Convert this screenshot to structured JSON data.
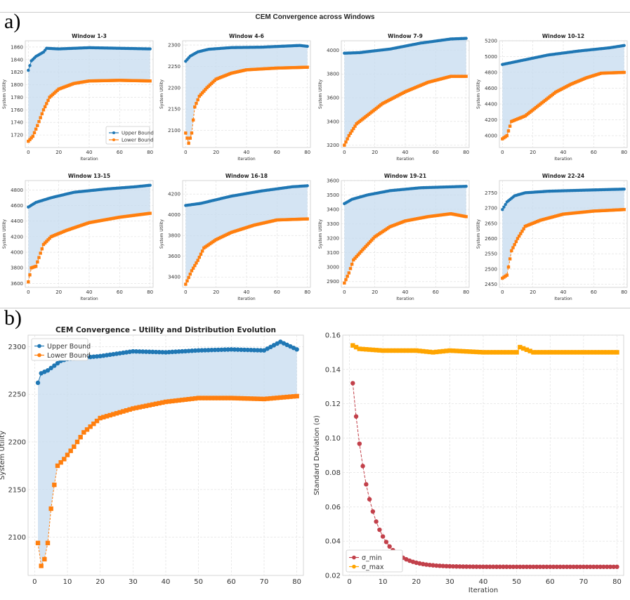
{
  "panel_labels": {
    "a": "a)",
    "b": "b)"
  },
  "suptitle": "CEM Convergence across Windows",
  "colors": {
    "upper": "#1f77b4",
    "lower": "#ff7f0e",
    "fill": "#c6dbef",
    "sigma_min": "#c2404a",
    "sigma_max": "#ffa500",
    "grid": "#dddddd"
  },
  "chart_data": [
    {
      "type": "line",
      "title": "Window 1-3",
      "xlabel": "Iteration",
      "ylabel": "System Utility",
      "xlim": [
        -2,
        82
      ],
      "ylim": [
        1700,
        1870
      ],
      "xticks": [
        0,
        20,
        40,
        60,
        80
      ],
      "yticks": [
        1720,
        1740,
        1760,
        1780,
        1800,
        1820,
        1840,
        1860
      ],
      "series": [
        {
          "name": "Upper Bound",
          "anchors": [
            [
              0,
              1823
            ],
            [
              2,
              1838
            ],
            [
              5,
              1845
            ],
            [
              10,
              1852
            ],
            [
              12,
              1858
            ],
            [
              20,
              1857
            ],
            [
              40,
              1859
            ],
            [
              60,
              1858
            ],
            [
              80,
              1857
            ]
          ]
        },
        {
          "name": "Lower Bound",
          "anchors": [
            [
              0,
              1710
            ],
            [
              3,
              1718
            ],
            [
              6,
              1735
            ],
            [
              10,
              1760
            ],
            [
              14,
              1780
            ],
            [
              20,
              1793
            ],
            [
              30,
              1802
            ],
            [
              40,
              1806
            ],
            [
              60,
              1807
            ],
            [
              80,
              1806
            ]
          ]
        }
      ],
      "legend": "bottom-right"
    },
    {
      "type": "line",
      "title": "Window 4-6",
      "xlabel": "Iteration",
      "ylabel": "System Utility",
      "xlim": [
        -2,
        82
      ],
      "ylim": [
        2060,
        2310
      ],
      "xticks": [
        0,
        20,
        40,
        60,
        80
      ],
      "yticks": [
        2100,
        2150,
        2200,
        2250,
        2300
      ],
      "series": [
        {
          "name": "Upper Bound",
          "anchors": [
            [
              0,
              2262
            ],
            [
              3,
              2274
            ],
            [
              8,
              2284
            ],
            [
              15,
              2290
            ],
            [
              30,
              2294
            ],
            [
              50,
              2295
            ],
            [
              75,
              2299
            ],
            [
              80,
              2297
            ]
          ]
        },
        {
          "name": "Lower Bound",
          "anchors": [
            [
              0,
              2094
            ],
            [
              2,
              2070
            ],
            [
              4,
              2094
            ],
            [
              6,
              2155
            ],
            [
              9,
              2180
            ],
            [
              14,
              2200
            ],
            [
              20,
              2220
            ],
            [
              30,
              2234
            ],
            [
              40,
              2242
            ],
            [
              60,
              2246
            ],
            [
              80,
              2248
            ]
          ]
        }
      ]
    },
    {
      "type": "line",
      "title": "Window 7-9",
      "xlabel": "Iteration",
      "ylabel": "System Utility",
      "xlim": [
        -2,
        82
      ],
      "ylim": [
        3180,
        4080
      ],
      "xticks": [
        0,
        20,
        40,
        60,
        80
      ],
      "yticks": [
        3200,
        3400,
        3600,
        3800,
        4000
      ],
      "series": [
        {
          "name": "Upper Bound",
          "anchors": [
            [
              0,
              3975
            ],
            [
              10,
              3980
            ],
            [
              30,
              4010
            ],
            [
              50,
              4060
            ],
            [
              70,
              4095
            ],
            [
              80,
              4100
            ]
          ]
        },
        {
          "name": "Lower Bound",
          "anchors": [
            [
              0,
              3200
            ],
            [
              3,
              3280
            ],
            [
              8,
              3380
            ],
            [
              15,
              3450
            ],
            [
              25,
              3550
            ],
            [
              40,
              3650
            ],
            [
              55,
              3730
            ],
            [
              70,
              3780
            ],
            [
              80,
              3780
            ]
          ]
        }
      ]
    },
    {
      "type": "line",
      "title": "Window 10-12",
      "xlabel": "Iteration",
      "ylabel": "System Utility",
      "xlim": [
        -2,
        82
      ],
      "ylim": [
        3850,
        5200
      ],
      "xticks": [
        0,
        20,
        40,
        60,
        80
      ],
      "yticks": [
        4000,
        4200,
        4400,
        4600,
        4800,
        5000,
        5200
      ],
      "series": [
        {
          "name": "Upper Bound",
          "anchors": [
            [
              0,
              4900
            ],
            [
              10,
              4940
            ],
            [
              30,
              5020
            ],
            [
              50,
              5070
            ],
            [
              70,
              5110
            ],
            [
              80,
              5140
            ]
          ]
        },
        {
          "name": "Lower Bound",
          "anchors": [
            [
              0,
              3960
            ],
            [
              3,
              4000
            ],
            [
              6,
              4180
            ],
            [
              15,
              4250
            ],
            [
              25,
              4400
            ],
            [
              35,
              4550
            ],
            [
              45,
              4650
            ],
            [
              55,
              4730
            ],
            [
              65,
              4790
            ],
            [
              80,
              4800
            ]
          ]
        }
      ]
    },
    {
      "type": "line",
      "title": "Window 13-15",
      "xlabel": "Iteration",
      "ylabel": "System Utility",
      "xlim": [
        -2,
        82
      ],
      "ylim": [
        3550,
        4920
      ],
      "xticks": [
        0,
        20,
        40,
        60,
        80
      ],
      "yticks": [
        3600,
        3800,
        4000,
        4200,
        4400,
        4600,
        4800
      ],
      "series": [
        {
          "name": "Upper Bound",
          "anchors": [
            [
              0,
              4580
            ],
            [
              5,
              4640
            ],
            [
              15,
              4700
            ],
            [
              30,
              4770
            ],
            [
              50,
              4810
            ],
            [
              70,
              4840
            ],
            [
              80,
              4860
            ]
          ]
        },
        {
          "name": "Lower Bound",
          "anchors": [
            [
              0,
              3620
            ],
            [
              2,
              3800
            ],
            [
              5,
              3820
            ],
            [
              10,
              4100
            ],
            [
              15,
              4200
            ],
            [
              25,
              4280
            ],
            [
              40,
              4380
            ],
            [
              60,
              4450
            ],
            [
              80,
              4500
            ]
          ]
        }
      ]
    },
    {
      "type": "line",
      "title": "Window 16-18",
      "xlabel": "Iteration",
      "ylabel": "System Utility",
      "xlim": [
        -2,
        82
      ],
      "ylim": [
        3300,
        4330
      ],
      "xticks": [
        0,
        20,
        40,
        60,
        80
      ],
      "yticks": [
        3400,
        3600,
        3800,
        4000,
        4200
      ],
      "series": [
        {
          "name": "Upper Bound",
          "anchors": [
            [
              0,
              4090
            ],
            [
              10,
              4110
            ],
            [
              30,
              4180
            ],
            [
              50,
              4230
            ],
            [
              70,
              4270
            ],
            [
              80,
              4280
            ]
          ]
        },
        {
          "name": "Lower Bound",
          "anchors": [
            [
              0,
              3330
            ],
            [
              4,
              3460
            ],
            [
              8,
              3560
            ],
            [
              12,
              3680
            ],
            [
              20,
              3760
            ],
            [
              30,
              3830
            ],
            [
              45,
              3900
            ],
            [
              60,
              3950
            ],
            [
              80,
              3960
            ]
          ]
        }
      ]
    },
    {
      "type": "line",
      "title": "Window 19-21",
      "xlabel": "Iteration",
      "ylabel": "System Utility",
      "xlim": [
        -2,
        82
      ],
      "ylim": [
        2860,
        3600
      ],
      "xticks": [
        0,
        20,
        40,
        60,
        80
      ],
      "yticks": [
        2900,
        3000,
        3100,
        3200,
        3300,
        3400,
        3500,
        3600
      ],
      "series": [
        {
          "name": "Upper Bound",
          "anchors": [
            [
              0,
              3440
            ],
            [
              5,
              3470
            ],
            [
              15,
              3500
            ],
            [
              30,
              3530
            ],
            [
              50,
              3550
            ],
            [
              80,
              3560
            ]
          ]
        },
        {
          "name": "Lower Bound",
          "anchors": [
            [
              0,
              2890
            ],
            [
              3,
              2960
            ],
            [
              6,
              3050
            ],
            [
              12,
              3120
            ],
            [
              20,
              3210
            ],
            [
              30,
              3280
            ],
            [
              40,
              3320
            ],
            [
              55,
              3350
            ],
            [
              70,
              3370
            ],
            [
              80,
              3350
            ]
          ]
        }
      ]
    },
    {
      "type": "line",
      "title": "Window 22-24",
      "xlabel": "Iteration",
      "ylabel": "System Utility",
      "xlim": [
        -2,
        82
      ],
      "ylim": [
        2440,
        2790
      ],
      "xticks": [
        0,
        20,
        40,
        60,
        80
      ],
      "yticks": [
        2450,
        2500,
        2550,
        2600,
        2650,
        2700,
        2750
      ],
      "series": [
        {
          "name": "Upper Bound",
          "anchors": [
            [
              0,
              2695
            ],
            [
              3,
              2720
            ],
            [
              8,
              2740
            ],
            [
              15,
              2750
            ],
            [
              30,
              2755
            ],
            [
              50,
              2758
            ],
            [
              80,
              2762
            ]
          ]
        },
        {
          "name": "Lower Bound",
          "anchors": [
            [
              0,
              2470
            ],
            [
              3,
              2480
            ],
            [
              6,
              2560
            ],
            [
              10,
              2600
            ],
            [
              15,
              2640
            ],
            [
              25,
              2660
            ],
            [
              40,
              2680
            ],
            [
              60,
              2690
            ],
            [
              80,
              2695
            ]
          ]
        }
      ]
    },
    {
      "type": "line",
      "title": "CEM Convergence – Utility and Distribution Evolution",
      "xlabel": "",
      "ylabel": "System Utility",
      "xlim": [
        -2,
        82
      ],
      "ylim": [
        2060,
        2312
      ],
      "xticks": [
        0,
        10,
        20,
        30,
        40,
        50,
        60,
        70,
        80
      ],
      "yticks": [
        2100,
        2150,
        2200,
        2250,
        2300
      ],
      "series": [
        {
          "name": "Upper Bound",
          "anchors": [
            [
              1,
              2262
            ],
            [
              2,
              2272
            ],
            [
              4,
              2275
            ],
            [
              6,
              2280
            ],
            [
              8,
              2285
            ],
            [
              10,
              2287
            ],
            [
              20,
              2290
            ],
            [
              30,
              2295
            ],
            [
              40,
              2294
            ],
            [
              50,
              2296
            ],
            [
              60,
              2297
            ],
            [
              70,
              2296
            ],
            [
              75,
              2305
            ],
            [
              80,
              2297
            ]
          ]
        },
        {
          "name": "Lower Bound",
          "anchors": [
            [
              1,
              2094
            ],
            [
              2,
              2070
            ],
            [
              3,
              2077
            ],
            [
              4,
              2094
            ],
            [
              5,
              2130
            ],
            [
              6,
              2155
            ],
            [
              7,
              2175
            ],
            [
              9,
              2182
            ],
            [
              12,
              2195
            ],
            [
              15,
              2210
            ],
            [
              20,
              2225
            ],
            [
              30,
              2235
            ],
            [
              40,
              2242
            ],
            [
              50,
              2246
            ],
            [
              60,
              2246
            ],
            [
              70,
              2245
            ],
            [
              80,
              2248
            ]
          ]
        }
      ],
      "legend": "top-left"
    },
    {
      "type": "line",
      "title": "",
      "xlabel": "Iteration",
      "ylabel": "Standard Deviation (σ)",
      "xlim": [
        -2,
        82
      ],
      "ylim": [
        0.02,
        0.16
      ],
      "xticks": [
        0,
        10,
        20,
        30,
        40,
        50,
        60,
        70,
        80
      ],
      "yticks": [
        0.02,
        0.04,
        0.06,
        0.08,
        0.1,
        0.12,
        0.14,
        0.16
      ],
      "series": [
        {
          "name": "σ_min",
          "kind": "decay",
          "start": 0.132,
          "floor": 0.025,
          "rate": 0.2
        },
        {
          "name": "σ_max",
          "anchors": [
            [
              1,
              0.154
            ],
            [
              3,
              0.152
            ],
            [
              10,
              0.151
            ],
            [
              20,
              0.151
            ],
            [
              25,
              0.15
            ],
            [
              30,
              0.151
            ],
            [
              40,
              0.15
            ],
            [
              50,
              0.15
            ],
            [
              51,
              0.153
            ],
            [
              55,
              0.15
            ],
            [
              80,
              0.15
            ]
          ]
        }
      ],
      "legend": "bottom-left"
    }
  ]
}
